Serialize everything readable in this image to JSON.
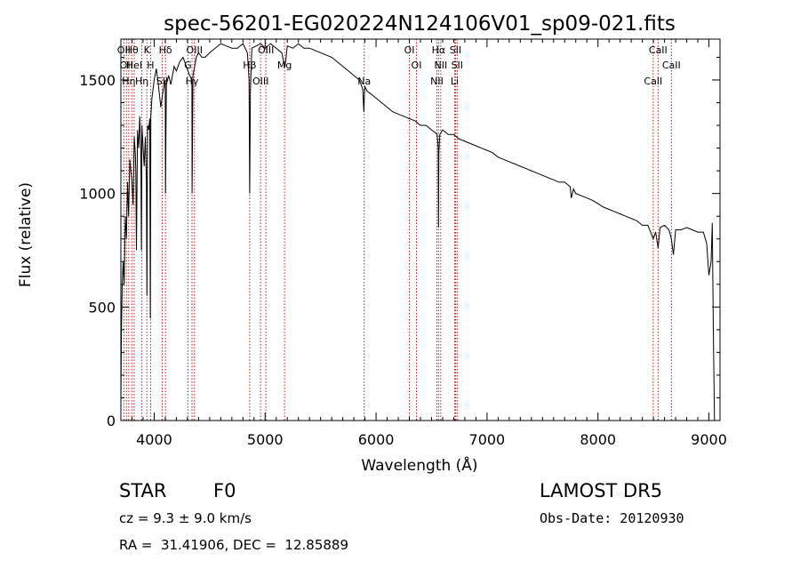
{
  "chart_data": {
    "type": "line",
    "title": "spec-56201-EG020224N124106V01_sp09-021.fits",
    "xlabel": "Wavelength (Å)",
    "ylabel": "Flux (relative)",
    "xlim": [
      3700,
      9100
    ],
    "ylim": [
      0,
      1680
    ],
    "xticks": [
      4000,
      5000,
      6000,
      7000,
      8000,
      9000
    ],
    "yticks": [
      0,
      500,
      1000,
      1500
    ],
    "grid": false,
    "series": [
      {
        "x": [
          3700,
          3705,
          3712,
          3720,
          3730,
          3740,
          3750,
          3760,
          3770,
          3780,
          3790,
          3800,
          3810,
          3820,
          3830,
          3835,
          3840,
          3850,
          3860,
          3870,
          3880,
          3885,
          3890,
          3900,
          3910,
          3920,
          3930,
          3935,
          3940,
          3950,
          3960,
          3965,
          3970,
          3980,
          3990,
          4000,
          4020,
          4040,
          4060,
          4080,
          4100,
          4102,
          4105,
          4110,
          4130,
          4150,
          4180,
          4200,
          4230,
          4260,
          4290,
          4320,
          4340,
          4342,
          4345,
          4350,
          4380,
          4400,
          4430,
          4460,
          4500,
          4550,
          4600,
          4650,
          4700,
          4750,
          4800,
          4840,
          4855,
          4861,
          4867,
          4880,
          4920,
          4960,
          5000,
          5050,
          5100,
          5150,
          5175,
          5180,
          5200,
          5250,
          5300,
          5350,
          5400,
          5450,
          5500,
          5550,
          5600,
          5650,
          5700,
          5750,
          5800,
          5850,
          5880,
          5890,
          5896,
          5900,
          5920,
          5950,
          6000,
          6050,
          6100,
          6150,
          6200,
          6250,
          6300,
          6350,
          6400,
          6450,
          6500,
          6530,
          6550,
          6560,
          6563,
          6566,
          6575,
          6600,
          6650,
          6700,
          6750,
          6800,
          6850,
          6900,
          6950,
          7000,
          7050,
          7100,
          7150,
          7200,
          7250,
          7300,
          7350,
          7400,
          7450,
          7500,
          7550,
          7600,
          7650,
          7700,
          7750,
          7760,
          7780,
          7800,
          7850,
          7900,
          7950,
          8000,
          8050,
          8100,
          8150,
          8200,
          8250,
          8300,
          8350,
          8400,
          8450,
          8498,
          8520,
          8542,
          8560,
          8600,
          8640,
          8662,
          8680,
          8700,
          8750,
          8800,
          8850,
          8900,
          8950,
          8980,
          9000,
          9020,
          9030,
          9040,
          9050
        ],
        "y": [
          70,
          400,
          600,
          700,
          600,
          900,
          800,
          1050,
          900,
          1150,
          1100,
          1050,
          950,
          1250,
          1180,
          1100,
          750,
          1280,
          1200,
          1340,
          1180,
          750,
          1300,
          1200,
          1120,
          1250,
          1050,
          550,
          1300,
          1280,
          1330,
          450,
          1340,
          1420,
          1460,
          1500,
          1550,
          1470,
          1380,
          1450,
          1500,
          1000,
          1220,
          1480,
          1520,
          1480,
          1560,
          1540,
          1580,
          1600,
          1560,
          1520,
          1500,
          1000,
          1200,
          1520,
          1600,
          1620,
          1600,
          1600,
          1620,
          1640,
          1660,
          1650,
          1640,
          1640,
          1660,
          1620,
          1500,
          1000,
          1450,
          1640,
          1650,
          1660,
          1640,
          1660,
          1640,
          1620,
          1560,
          1560,
          1650,
          1640,
          1660,
          1640,
          1640,
          1630,
          1620,
          1610,
          1600,
          1580,
          1560,
          1540,
          1520,
          1500,
          1460,
          1360,
          1450,
          1470,
          1450,
          1440,
          1420,
          1400,
          1380,
          1360,
          1350,
          1340,
          1330,
          1320,
          1300,
          1300,
          1280,
          1270,
          1260,
          1200,
          850,
          1180,
          1260,
          1280,
          1260,
          1260,
          1240,
          1230,
          1220,
          1210,
          1200,
          1190,
          1180,
          1160,
          1150,
          1140,
          1130,
          1120,
          1110,
          1100,
          1090,
          1080,
          1070,
          1060,
          1050,
          1050,
          1030,
          980,
          1020,
          1000,
          990,
          980,
          970,
          955,
          940,
          930,
          920,
          910,
          900,
          890,
          880,
          860,
          860,
          800,
          830,
          760,
          850,
          860,
          840,
          800,
          730,
          840,
          840,
          850,
          840,
          830,
          830,
          780,
          640,
          700,
          870,
          400,
          0
        ]
      }
    ],
    "lines": [
      {
        "x": 3727,
        "label": "OII"
      },
      {
        "x": 3750,
        "label": "OII"
      },
      {
        "x": 3771,
        "label": "Hη"
      },
      {
        "x": 3798,
        "label": "Hθ"
      },
      {
        "x": 3820,
        "label": "HeI"
      },
      {
        "x": 3889,
        "label": "Hη"
      },
      {
        "x": 3934,
        "label": "K"
      },
      {
        "x": 3968,
        "label": "H"
      },
      {
        "x": 4072,
        "label": "SII"
      },
      {
        "x": 4102,
        "label": "Hδ"
      },
      {
        "x": 4304,
        "label": "G"
      },
      {
        "x": 4341,
        "label": "Hγ"
      },
      {
        "x": 4363,
        "label": "OIII"
      },
      {
        "x": 4861,
        "label": "Hβ"
      },
      {
        "x": 4959,
        "label": "OIII"
      },
      {
        "x": 5007,
        "label": "OIII"
      },
      {
        "x": 5175,
        "label": "Mg"
      },
      {
        "x": 5893,
        "label": "Na"
      },
      {
        "x": 6300,
        "label": "OI"
      },
      {
        "x": 6364,
        "label": "OI"
      },
      {
        "x": 6548,
        "label": "NII"
      },
      {
        "x": 6563,
        "label": "Hα"
      },
      {
        "x": 6583,
        "label": "NII"
      },
      {
        "x": 6708,
        "label": "Li"
      },
      {
        "x": 6716,
        "label": "SII"
      },
      {
        "x": 6731,
        "label": "SII"
      },
      {
        "x": 8498,
        "label": "CaII"
      },
      {
        "x": 8542,
        "label": "CaII"
      },
      {
        "x": 8662,
        "label": "CaII"
      }
    ]
  },
  "info": {
    "obj_class": "STAR",
    "subclass": "F0",
    "survey": "LAMOST DR5",
    "cz": "cz = 9.3 ± 9.0 km/s",
    "obs_date": "Obs-Date: 20120930",
    "coords": "RA =  31.41906, DEC =  12.85889"
  },
  "colors": {
    "spectrum": "#000000",
    "line_markers": "#b22222",
    "axes": "#000000"
  }
}
